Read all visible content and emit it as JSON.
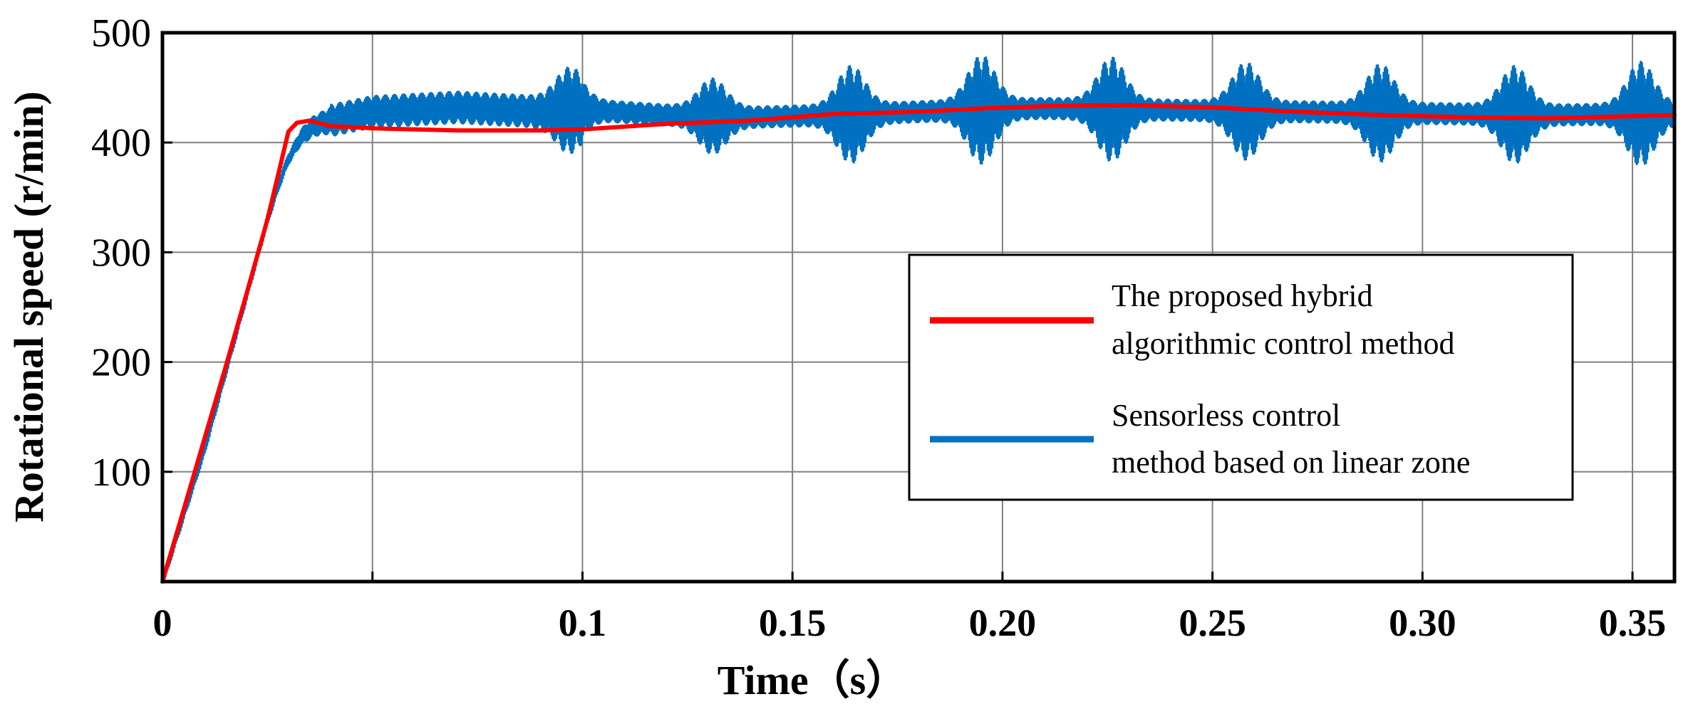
{
  "chart_data": {
    "type": "line",
    "title": "",
    "xlabel": "Time（s）",
    "ylabel": "Rotational speed (r/min)",
    "xlim": [
      0,
      0.36
    ],
    "ylim": [
      0,
      500
    ],
    "grid": true,
    "x_ticks": [
      {
        "value": 0,
        "label": "0"
      },
      {
        "value": 0.05,
        "label": ""
      },
      {
        "value": 0.1,
        "label": "0.1"
      },
      {
        "value": 0.15,
        "label": "0.15"
      },
      {
        "value": 0.2,
        "label": "0.20"
      },
      {
        "value": 0.25,
        "label": "0.25"
      },
      {
        "value": 0.3,
        "label": "0.30"
      },
      {
        "value": 0.35,
        "label": "0.35"
      }
    ],
    "y_ticks": [
      {
        "value": 100,
        "label": "100"
      },
      {
        "value": 200,
        "label": "200"
      },
      {
        "value": 300,
        "label": "300"
      },
      {
        "value": 400,
        "label": "400"
      },
      {
        "value": 500,
        "label": "500"
      }
    ],
    "legend": {
      "placement": "center-right",
      "entries": [
        {
          "lines": [
            "The proposed hybrid",
            "algorithmic control method"
          ],
          "series_index": 0
        },
        {
          "lines": [
            "Sensorless control",
            "method based on linear zone"
          ],
          "series_index": 1
        }
      ]
    },
    "series": [
      {
        "name": "The proposed hybrid algorithmic control method",
        "color": "#ff0000",
        "kind": "smooth",
        "x": [
          0,
          0.005,
          0.01,
          0.015,
          0.02,
          0.025,
          0.03,
          0.032,
          0.035,
          0.04,
          0.05,
          0.07,
          0.09,
          0.1,
          0.12,
          0.14,
          0.16,
          0.18,
          0.195,
          0.21,
          0.23,
          0.25,
          0.27,
          0.29,
          0.31,
          0.33,
          0.35,
          0.36
        ],
        "y": [
          0,
          65,
          130,
          195,
          262,
          330,
          410,
          418,
          420,
          415,
          413,
          411,
          411,
          412,
          417,
          420,
          426,
          428,
          431,
          433,
          434,
          432,
          428,
          425,
          423,
          422,
          424,
          425
        ]
      },
      {
        "name": "Sensorless control method based on linear zone",
        "color": "#0070c0",
        "kind": "oscillating",
        "x": [
          0,
          0.01,
          0.02,
          0.025,
          0.028,
          0.03,
          0.033,
          0.036,
          0.04,
          0.05,
          0.06,
          0.07,
          0.09,
          0.1,
          0.12,
          0.14,
          0.16,
          0.18,
          0.195,
          0.21,
          0.23,
          0.25,
          0.27,
          0.29,
          0.31,
          0.33,
          0.35,
          0.36
        ],
        "y": [
          0,
          120,
          260,
          330,
          365,
          385,
          405,
          415,
          420,
          428,
          430,
          432,
          428,
          430,
          425,
          423,
          425,
          428,
          430,
          431,
          430,
          429,
          428,
          427,
          426,
          425,
          426,
          426
        ],
        "oscillation_amplitude": 12,
        "bursts": [
          {
            "t": 0.097,
            "amplitude": 25
          },
          {
            "t": 0.131,
            "amplitude": 25
          },
          {
            "t": 0.164,
            "amplitude": 35
          },
          {
            "t": 0.195,
            "amplitude": 40
          },
          {
            "t": 0.226,
            "amplitude": 38
          },
          {
            "t": 0.258,
            "amplitude": 35
          },
          {
            "t": 0.29,
            "amplitude": 35
          },
          {
            "t": 0.322,
            "amplitude": 35
          },
          {
            "t": 0.352,
            "amplitude": 38
          }
        ]
      }
    ]
  }
}
